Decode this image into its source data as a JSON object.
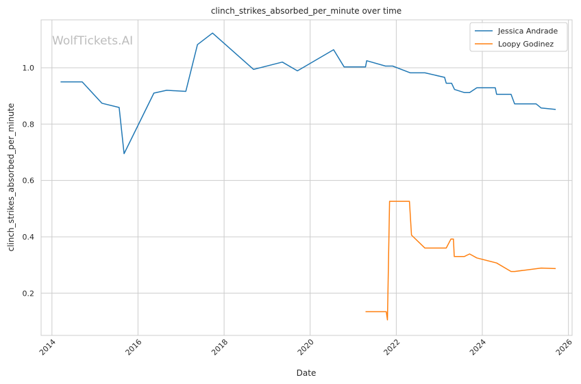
{
  "chart_data": {
    "type": "line",
    "title": "clinch_strikes_absorbed_per_minute over time",
    "xlabel": "Date",
    "ylabel": "clinch_strikes_absorbed_per_minute",
    "watermark": "WolfTickets.AI",
    "xlim": [
      "2013-10-01",
      "2026-02-01"
    ],
    "ylim": [
      0.05,
      1.17
    ],
    "x_ticks": [
      "2014",
      "2016",
      "2018",
      "2020",
      "2022",
      "2024",
      "2026"
    ],
    "x_tick_dates": [
      "2014-01-01",
      "2016-01-01",
      "2018-01-01",
      "2020-01-01",
      "2022-01-01",
      "2024-01-01",
      "2026-01-01"
    ],
    "y_ticks": [
      0.2,
      0.4,
      0.6,
      0.8,
      1.0
    ],
    "y_tick_labels": [
      "0.2",
      "0.4",
      "0.6",
      "0.8",
      "1.0"
    ],
    "grid": true,
    "legend_position": "top-right",
    "series": [
      {
        "name": "Jessica Andrade",
        "color": "#1f77b4",
        "points": [
          [
            "2014-03-15",
            0.95
          ],
          [
            "2014-09-15",
            0.95
          ],
          [
            "2015-03-01",
            0.874
          ],
          [
            "2015-07-25",
            0.859
          ],
          [
            "2015-09-05",
            0.695
          ],
          [
            "2016-05-15",
            0.91
          ],
          [
            "2016-09-01",
            0.92
          ],
          [
            "2017-02-10",
            0.916
          ],
          [
            "2017-05-20",
            1.082
          ],
          [
            "2017-09-25",
            1.123
          ],
          [
            "2018-09-08",
            0.994
          ],
          [
            "2019-05-10",
            1.02
          ],
          [
            "2019-09-15",
            0.989
          ],
          [
            "2020-07-18",
            1.064
          ],
          [
            "2020-10-15",
            1.003
          ],
          [
            "2021-04-15",
            1.003
          ],
          [
            "2021-04-25",
            1.025
          ],
          [
            "2021-10-01",
            1.006
          ],
          [
            "2021-12-01",
            1.006
          ],
          [
            "2022-04-30",
            0.982
          ],
          [
            "2022-09-01",
            0.982
          ],
          [
            "2023-02-15",
            0.966
          ],
          [
            "2023-03-01",
            0.945
          ],
          [
            "2023-04-15",
            0.945
          ],
          [
            "2023-05-10",
            0.923
          ],
          [
            "2023-08-01",
            0.912
          ],
          [
            "2023-09-15",
            0.912
          ],
          [
            "2023-11-15",
            0.929
          ],
          [
            "2024-04-20",
            0.929
          ],
          [
            "2024-05-01",
            0.906
          ],
          [
            "2024-09-01",
            0.906
          ],
          [
            "2024-10-01",
            0.872
          ],
          [
            "2025-04-01",
            0.872
          ],
          [
            "2025-05-15",
            0.857
          ],
          [
            "2025-09-15",
            0.852
          ]
        ]
      },
      {
        "name": "Loopy Godinez",
        "color": "#ff7f0e",
        "points": [
          [
            "2021-04-15",
            0.134
          ],
          [
            "2021-10-08",
            0.134
          ],
          [
            "2021-10-18",
            0.105
          ],
          [
            "2021-11-05",
            0.526
          ],
          [
            "2022-04-23",
            0.526
          ],
          [
            "2022-05-10",
            0.406
          ],
          [
            "2022-09-01",
            0.36
          ],
          [
            "2023-03-01",
            0.36
          ],
          [
            "2023-04-10",
            0.392
          ],
          [
            "2023-05-01",
            0.392
          ],
          [
            "2023-05-08",
            0.33
          ],
          [
            "2023-08-01",
            0.33
          ],
          [
            "2023-09-15",
            0.339
          ],
          [
            "2023-11-15",
            0.325
          ],
          [
            "2024-05-01",
            0.307
          ],
          [
            "2024-09-01",
            0.277
          ],
          [
            "2024-10-01",
            0.277
          ],
          [
            "2025-05-15",
            0.289
          ],
          [
            "2025-09-15",
            0.287
          ]
        ]
      }
    ]
  }
}
